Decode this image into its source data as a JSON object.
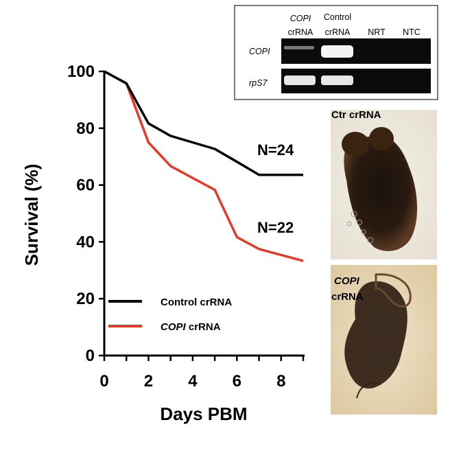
{
  "chart_data": {
    "type": "line",
    "xlabel": "Days PBM",
    "ylabel": "Survival (%)",
    "xlim": [
      0,
      9
    ],
    "ylim": [
      0,
      100
    ],
    "xticks": [
      "0",
      "2",
      "4",
      "6",
      "8"
    ],
    "yticks": [
      "0",
      "20",
      "40",
      "60",
      "80",
      "100"
    ],
    "grid": false,
    "legend_position": "bottom-left",
    "series": [
      {
        "name": "Control crRNA",
        "color": "#000000",
        "x": [
          0,
          1,
          2,
          3,
          4,
          5,
          6,
          7,
          8,
          9
        ],
        "y": [
          100,
          95.8,
          81.7,
          77.3,
          75,
          72.7,
          68.2,
          63.6,
          63.6,
          63.6
        ],
        "n_label": "N=24"
      },
      {
        "name": "COPI crRNA",
        "name_italic": "COPI",
        "name_rest": " crRNA",
        "color": "#e53a2a",
        "x": [
          0,
          1,
          2,
          3,
          4,
          5,
          6,
          7,
          8,
          9
        ],
        "y": [
          100,
          95.8,
          75,
          66.7,
          62.5,
          58.3,
          41.7,
          37.5,
          35.4,
          33.3
        ],
        "n_label": "N=22"
      }
    ]
  },
  "gel": {
    "lanes": [
      {
        "line1": "COPI",
        "line1_italic": true,
        "line2": "crRNA"
      },
      {
        "line1": "Control",
        "line1_italic": false,
        "line2": "crRNA"
      },
      {
        "line1": "NRT",
        "line1_italic": false,
        "line2": ""
      },
      {
        "line1": "NTC",
        "line1_italic": false,
        "line2": ""
      }
    ],
    "rows": [
      "COPI",
      "rpS7"
    ]
  },
  "photos": [
    {
      "label_line1": "Ctr crRNA",
      "label_line2": "",
      "italic_first": false
    },
    {
      "label_line1": "COPI",
      "label_line2": "crRNA",
      "italic_first": true
    }
  ]
}
